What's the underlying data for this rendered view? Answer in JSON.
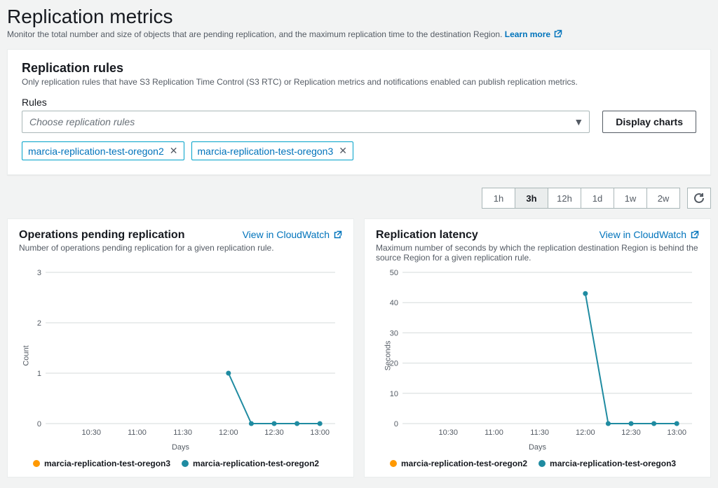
{
  "page": {
    "title": "Replication metrics",
    "subtitle": "Monitor the total number and size of objects that are pending replication, and the maximum replication time to the destination Region.",
    "learn_more": "Learn more"
  },
  "rules_panel": {
    "title": "Replication rules",
    "subtitle": "Only replication rules that have S3 Replication Time Control (S3 RTC) or Replication metrics and notifications enabled can publish replication metrics.",
    "rules_label": "Rules",
    "select_placeholder": "Choose replication rules",
    "display_button": "Display charts",
    "selected_chips": [
      "marcia-replication-test-oregon2",
      "marcia-replication-test-oregon3"
    ]
  },
  "toolbar": {
    "ranges": [
      "1h",
      "3h",
      "12h",
      "1d",
      "1w",
      "2w"
    ],
    "active_range": "3h"
  },
  "colors": {
    "series_a": "#ff9900",
    "series_b": "#1f8ba1",
    "grid": "#d5dbdb",
    "axis": "#879196",
    "text": "#545b64"
  },
  "chart1": {
    "title": "Operations pending replication",
    "subtitle": "Number of operations pending replication for a given replication rule.",
    "cw_link": "View in CloudWatch",
    "type": "line",
    "ylabel": "Count",
    "xlabel": "Days",
    "ylim": [
      0,
      3
    ],
    "yticks": [
      0,
      1,
      2,
      3
    ],
    "xticks": [
      "10:30",
      "11:00",
      "11:30",
      "12:00",
      "12:30",
      "13:00"
    ],
    "xrange": [
      10.0,
      13.167
    ],
    "series": [
      {
        "name": "marcia-replication-test-oregon3",
        "color_key": "series_a",
        "points": []
      },
      {
        "name": "marcia-replication-test-oregon2",
        "color_key": "series_b",
        "points": [
          {
            "x": 12.0,
            "y": 1
          },
          {
            "x": 12.25,
            "y": 0
          },
          {
            "x": 12.5,
            "y": 0
          },
          {
            "x": 12.75,
            "y": 0
          },
          {
            "x": 13.0,
            "y": 0
          }
        ]
      }
    ]
  },
  "chart2": {
    "title": "Replication latency",
    "subtitle": "Maximum number of seconds by which the replication destination Region is behind the source Region for a given replication rule.",
    "cw_link": "View in CloudWatch",
    "type": "line",
    "ylabel": "Seconds",
    "xlabel": "Days",
    "ylim": [
      0,
      50
    ],
    "yticks": [
      0,
      10,
      20,
      30,
      40,
      50
    ],
    "xticks": [
      "10:30",
      "11:00",
      "11:30",
      "12:00",
      "12:30",
      "13:00"
    ],
    "xrange": [
      10.0,
      13.167
    ],
    "series": [
      {
        "name": "marcia-replication-test-oregon2",
        "color_key": "series_a",
        "points": []
      },
      {
        "name": "marcia-replication-test-oregon3",
        "color_key": "series_b",
        "points": [
          {
            "x": 12.0,
            "y": 43
          },
          {
            "x": 12.25,
            "y": 0
          },
          {
            "x": 12.5,
            "y": 0
          },
          {
            "x": 12.75,
            "y": 0
          },
          {
            "x": 13.0,
            "y": 0
          }
        ]
      }
    ]
  }
}
